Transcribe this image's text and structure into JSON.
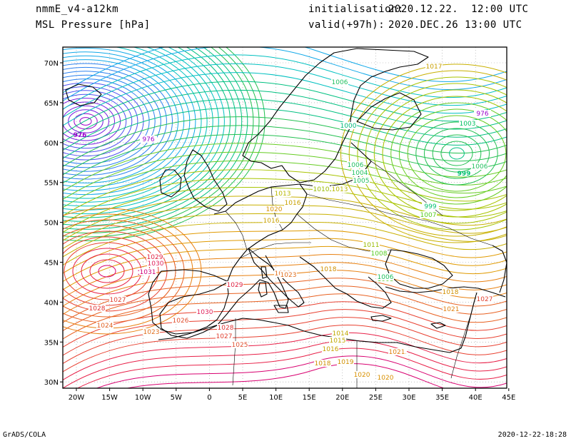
{
  "header": {
    "model": "nmmE_v4-a12km",
    "field": "MSL Pressure [hPa]",
    "init_label": "initialisation:",
    "init_value": "2020.12.22.  12:00 UTC",
    "valid_label": "valid(+97h):",
    "valid_value": "2020.DEC.26 13:00 UTC"
  },
  "footer": {
    "left": "GrADS/COLA",
    "right": "2020-12-22-18:28"
  },
  "map": {
    "lon_ticks": [
      "20W",
      "15W",
      "10W",
      "5W",
      "0",
      "5E",
      "10E",
      "15E",
      "20E",
      "25E",
      "30E",
      "35E",
      "40E",
      "45E"
    ],
    "lat_ticks": [
      "70N",
      "65N",
      "60N",
      "55N",
      "50N",
      "45N",
      "40N",
      "35N",
      "30N"
    ],
    "pressure_systems": [
      {
        "name": "low-north-atlantic",
        "value": "976",
        "color": "#9a00cc"
      },
      {
        "name": "low-russia",
        "value": "999",
        "color": "#00c070"
      },
      {
        "name": "high-iberia",
        "value": "1031",
        "color": "#d0007a"
      }
    ],
    "isobar_labels": [
      {
        "text": "976",
        "color": "#9a00cc"
      },
      {
        "text": "976",
        "color": "#9a00cc"
      },
      {
        "text": "1003",
        "color": "#00c060"
      },
      {
        "text": "1000",
        "color": "#00b87a"
      },
      {
        "text": "1006",
        "color": "#22c060"
      },
      {
        "text": "1004",
        "color": "#22c060"
      },
      {
        "text": "1005",
        "color": "#22c060"
      },
      {
        "text": "1006",
        "color": "#22c060"
      },
      {
        "text": "999",
        "color": "#00c070"
      },
      {
        "text": "1007",
        "color": "#55cc22"
      },
      {
        "text": "1008",
        "color": "#55cc22"
      },
      {
        "text": "1006",
        "color": "#22c060"
      },
      {
        "text": "1013",
        "color": "#b8b800"
      },
      {
        "text": "1016",
        "color": "#c8a000"
      },
      {
        "text": "1020",
        "color": "#d89000"
      },
      {
        "text": "1016",
        "color": "#c8a000"
      },
      {
        "text": "1013",
        "color": "#b8b800"
      },
      {
        "text": "1010",
        "color": "#99bb00"
      },
      {
        "text": "1018",
        "color": "#d09000"
      },
      {
        "text": "1023",
        "color": "#e07020"
      },
      {
        "text": "1029",
        "color": "#e02040"
      },
      {
        "text": "1030",
        "color": "#e0205a"
      },
      {
        "text": "1031",
        "color": "#d0007a"
      },
      {
        "text": "1029",
        "color": "#e02040"
      },
      {
        "text": "1028",
        "color": "#e03030"
      },
      {
        "text": "1027",
        "color": "#e04030"
      },
      {
        "text": "1024",
        "color": "#e06020"
      },
      {
        "text": "1023",
        "color": "#e07020"
      },
      {
        "text": "1026",
        "color": "#e05030"
      },
      {
        "text": "1030",
        "color": "#e0205a"
      },
      {
        "text": "1028",
        "color": "#e03030"
      },
      {
        "text": "1027",
        "color": "#e04030"
      },
      {
        "text": "1025",
        "color": "#e05030"
      },
      {
        "text": "1021",
        "color": "#e08010"
      },
      {
        "text": "1018",
        "color": "#d09000"
      },
      {
        "text": "1019",
        "color": "#d09000"
      },
      {
        "text": "1020",
        "color": "#d89000"
      },
      {
        "text": "1020",
        "color": "#d89000"
      },
      {
        "text": "1021",
        "color": "#e08010"
      },
      {
        "text": "1016",
        "color": "#c8a000"
      },
      {
        "text": "1015",
        "color": "#c0a800"
      },
      {
        "text": "1014",
        "color": "#c0a800"
      },
      {
        "text": "1023",
        "color": "#e07020"
      },
      {
        "text": "1027",
        "color": "#e04030"
      },
      {
        "text": "1021",
        "color": "#e08010"
      },
      {
        "text": "1018",
        "color": "#d09000"
      },
      {
        "text": "1006",
        "color": "#22c060"
      },
      {
        "text": "1008",
        "color": "#55cc22"
      },
      {
        "text": "1011",
        "color": "#99bb00"
      },
      {
        "text": "1017",
        "color": "#c8a000"
      }
    ]
  }
}
